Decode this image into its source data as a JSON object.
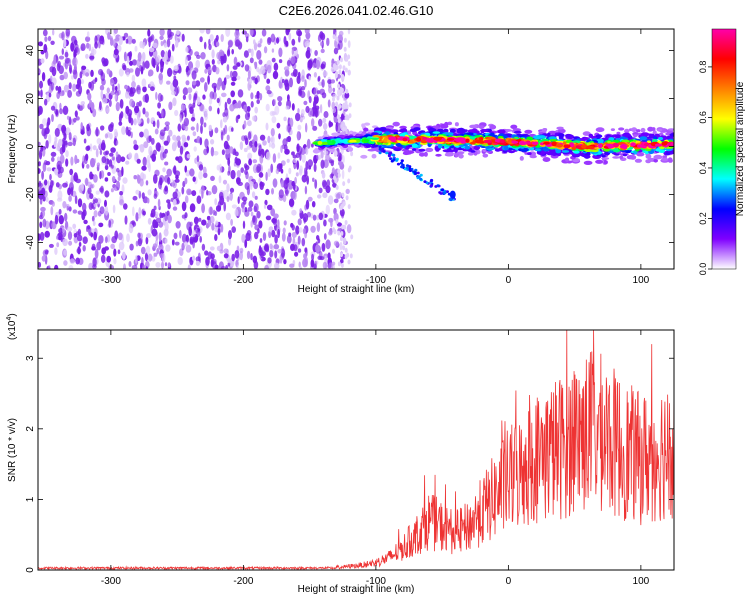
{
  "figure": {
    "title": "C2E6.2026.041.02.46.G10"
  },
  "chart_data": [
    {
      "type": "heatmap",
      "name": "spectrogram",
      "xlabel": "Height of straight line (km)",
      "ylabel": "Frequency (Hz)",
      "xlim": [
        -355,
        125
      ],
      "ylim": [
        -51,
        49
      ],
      "xticks": [
        -300,
        -200,
        -100,
        0,
        100
      ],
      "yticks": [
        -40,
        -20,
        0,
        20,
        40
      ],
      "noise_region_x": [
        -355,
        -130
      ],
      "noise_color": "#7a1fe6",
      "signal_track": {
        "description_x": [
          -155,
          125
        ],
        "center_freq_hz": [
          [
            -155,
            1
          ],
          [
            -100,
            3
          ],
          [
            -60,
            3
          ],
          [
            0,
            2
          ],
          [
            60,
            0
          ],
          [
            125,
            1
          ]
        ],
        "peak_amplitude": 0.95
      },
      "secondary_track": {
        "x": [
          -100,
          -40
        ],
        "freq_hz": [
          0,
          -22
        ]
      },
      "colorbar": {
        "label": "Normalized spectral amplitude",
        "ticks": [
          0.0,
          0.2,
          0.4,
          0.6,
          0.8
        ],
        "tick_labels": [
          "0.0",
          "0.2",
          "0.4",
          "0.6",
          "0.8"
        ],
        "range": [
          0,
          0.95
        ],
        "colormap": [
          "#ffffff",
          "#7f00ff",
          "#0000ff",
          "#00ffff",
          "#00ff00",
          "#ffff00",
          "#ff8000",
          "#ff0000",
          "#ff00aa"
        ]
      }
    },
    {
      "type": "line",
      "name": "snr",
      "xlabel": "Height of straight line (km)",
      "ylabel": "SNR (10 * v/v)",
      "exponent_label": "(x10",
      "exponent_power": "4",
      "exponent_close": ")",
      "xlim": [
        -355,
        125
      ],
      "ylim": [
        0,
        3.4
      ],
      "xticks": [
        -300,
        -200,
        -100,
        0,
        100
      ],
      "yticks": [
        0,
        1,
        2,
        3
      ],
      "line_color": "#ee3333",
      "envelope": [
        [
          -355,
          0.04
        ],
        [
          -130,
          0.04
        ],
        [
          -110,
          0.08
        ],
        [
          -100,
          0.12
        ],
        [
          -90,
          0.2
        ],
        [
          -80,
          0.35
        ],
        [
          -70,
          0.55
        ],
        [
          -60,
          0.8
        ],
        [
          -50,
          0.7
        ],
        [
          -40,
          0.6
        ],
        [
          -30,
          0.7
        ],
        [
          -20,
          0.95
        ],
        [
          -10,
          1.2
        ],
        [
          0,
          1.45
        ],
        [
          10,
          1.6
        ],
        [
          20,
          1.8
        ],
        [
          30,
          1.9
        ],
        [
          40,
          2.0
        ],
        [
          50,
          2.15
        ],
        [
          60,
          2.25
        ],
        [
          70,
          2.2
        ],
        [
          80,
          2.05
        ],
        [
          90,
          1.9
        ],
        [
          100,
          1.8
        ],
        [
          110,
          1.85
        ],
        [
          120,
          2.0
        ],
        [
          125,
          2.05
        ]
      ]
    }
  ]
}
